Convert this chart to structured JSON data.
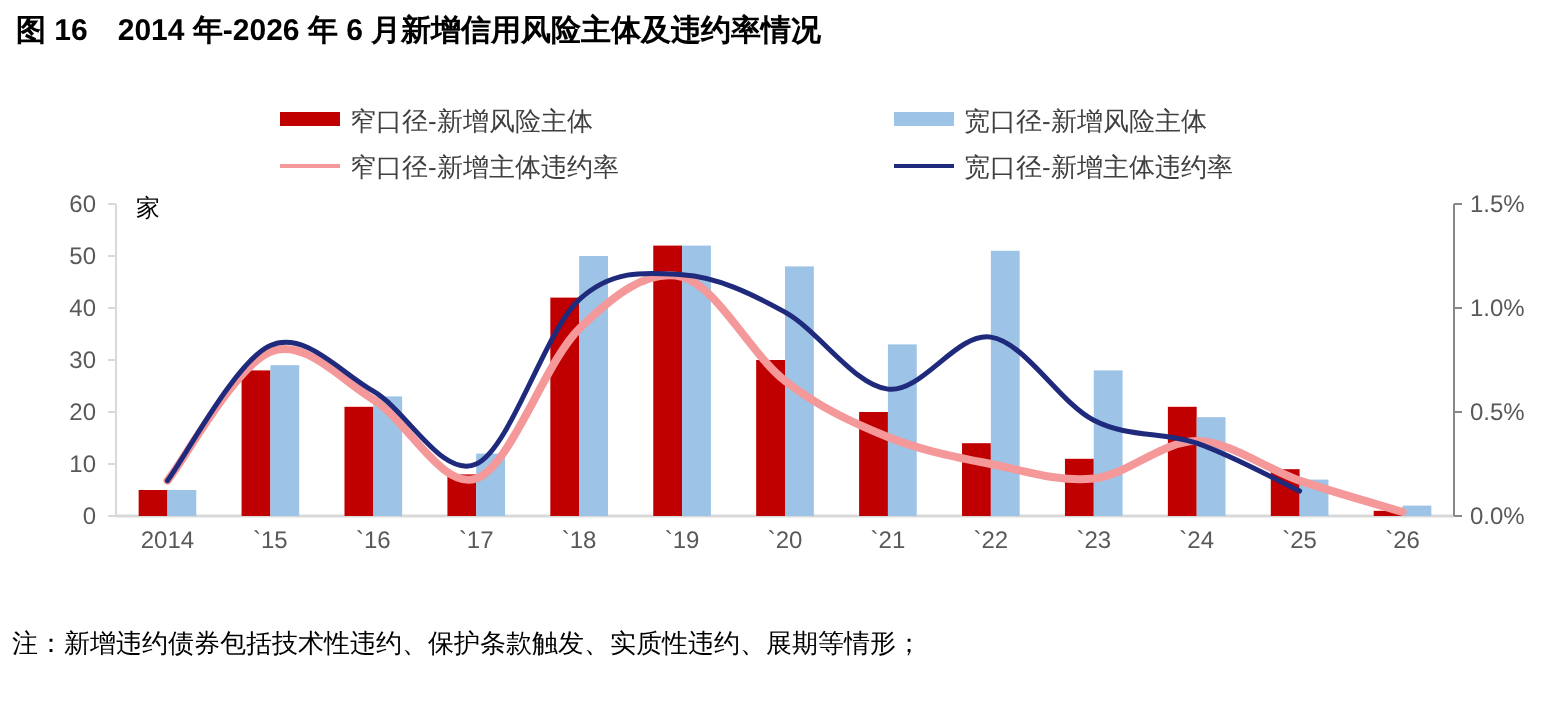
{
  "chart_data": {
    "type": "bar",
    "title": "图 16　2014 年-2026 年 6 月新增信用风险主体及违约率情况",
    "ylabel": "家",
    "categories": [
      "2014",
      "`15",
      "`16",
      "`17",
      "`18",
      "`19",
      "`20",
      "`21",
      "`22",
      "`23",
      "`24",
      "`25",
      "`26"
    ],
    "series": [
      {
        "name": "窄口径-新增风险主体",
        "color": "#c00000",
        "values": [
          5,
          28,
          21,
          8,
          42,
          52,
          30,
          20,
          14,
          11,
          21,
          9,
          1
        ]
      },
      {
        "name": "宽口径-新增风险主体",
        "color": "#9dc3e6",
        "values": [
          5,
          29,
          23,
          12,
          50,
          52,
          48,
          33,
          51,
          28,
          19,
          7,
          2
        ]
      },
      {
        "name": "窄口径-新增主体违约率",
        "type": "line",
        "axis": "y2",
        "color": "#f4989a",
        "values": [
          0.17,
          0.79,
          0.56,
          0.18,
          0.9,
          1.15,
          0.65,
          0.38,
          0.25,
          0.18,
          0.36,
          0.17,
          0.02
        ]
      },
      {
        "name": "宽口径-新增主体违约率",
        "type": "line",
        "axis": "y2",
        "color": "#1f2a7c",
        "values": [
          0.17,
          0.82,
          0.6,
          0.25,
          1.04,
          1.16,
          0.98,
          0.61,
          0.86,
          0.46,
          0.35,
          0.12,
          null
        ]
      }
    ],
    "ylim": [
      0,
      60
    ],
    "yticks": [
      0,
      10,
      20,
      30,
      40,
      50,
      60
    ],
    "y2lim": [
      0,
      1.5
    ],
    "y2ticks": [
      {
        "value": 0,
        "label": "0.0%"
      },
      {
        "value": 0.5,
        "label": "0.5%"
      },
      {
        "value": 1,
        "label": "1.0%"
      },
      {
        "value": 1.5,
        "label": "1.5%"
      }
    ],
    "legend": "top",
    "grid": false,
    "marker": "none",
    "line_style": "solid",
    "annotations": [
      "注：新增违约债券包括技术性违约、保护条款触发、实质性违约、展期等情形；"
    ]
  }
}
